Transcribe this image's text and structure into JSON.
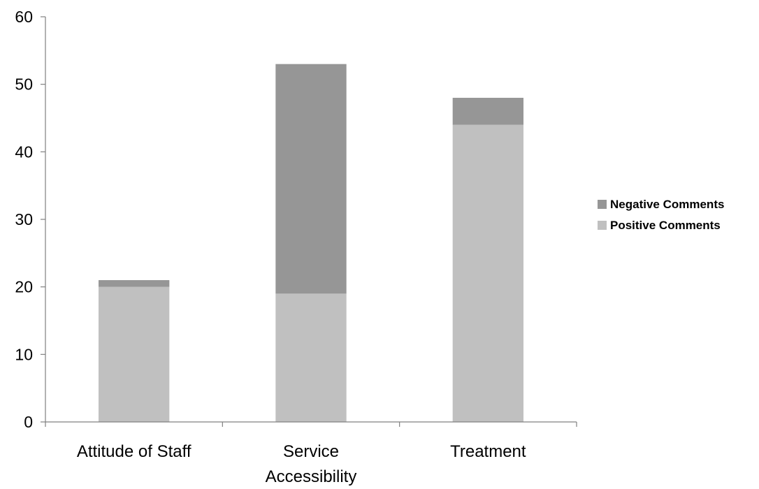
{
  "chart_data": {
    "type": "bar",
    "stacked": true,
    "categories": [
      [
        "Attitude of Staff"
      ],
      [
        "Service",
        "Accessibility"
      ],
      [
        "Treatment"
      ]
    ],
    "series": [
      {
        "name": "Positive Comments",
        "values": [
          20,
          19,
          44
        ],
        "color": "#c0c0c0"
      },
      {
        "name": "Negative Comments",
        "values": [
          1,
          34,
          4
        ],
        "color": "#969696"
      }
    ],
    "ylim": [
      0,
      60
    ],
    "yticks": [
      "0",
      "10",
      "20",
      "30",
      "40",
      "50",
      "60"
    ],
    "grid": false,
    "legend_position": "right",
    "legend_order": [
      "Negative Comments",
      "Positive Comments"
    ],
    "title": "",
    "xlabel": "",
    "ylabel": ""
  }
}
